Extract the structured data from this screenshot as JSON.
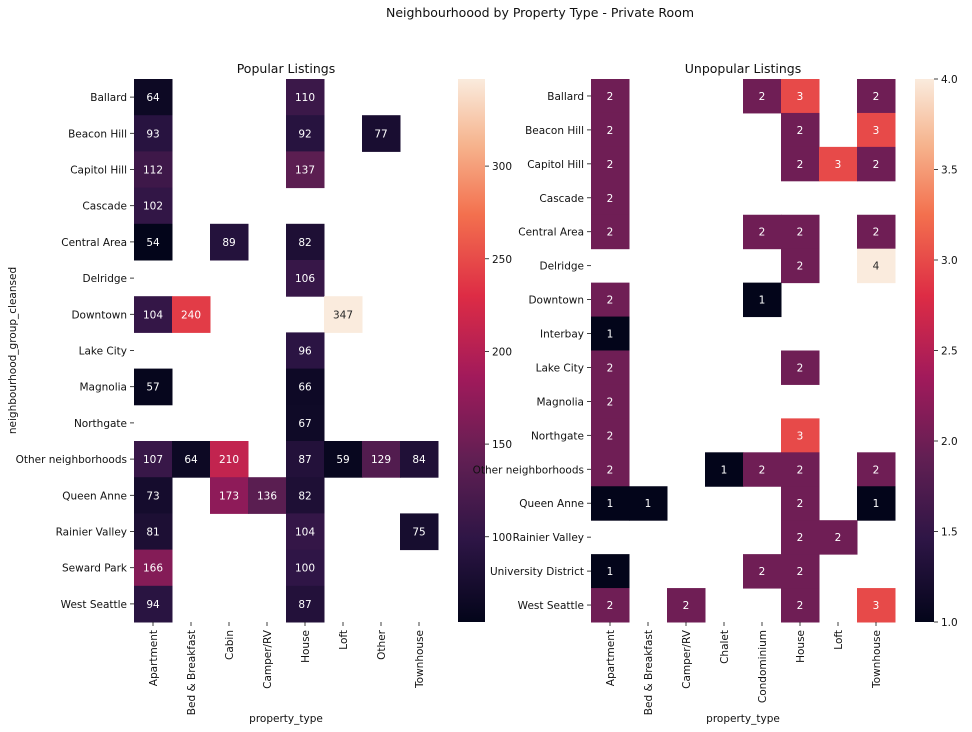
{
  "chart_data": {
    "suptitle": "Neighbourhoood by Property Type - Private Room",
    "panels": [
      {
        "type": "heatmap",
        "title": "Popular Listings",
        "xlabel": "property_type",
        "ylabel": "neighbourhood_group_cleansed",
        "columns": [
          "Apartment",
          "Bed & Breakfast",
          "Cabin",
          "Camper/RV",
          "House",
          "Loft",
          "Other",
          "Townhouse"
        ],
        "rows": [
          "Ballard",
          "Beacon Hill",
          "Capitol Hill",
          "Cascade",
          "Central Area",
          "Delridge",
          "Downtown",
          "Lake City",
          "Magnolia",
          "Northgate",
          "Other neighborhoods",
          "Queen Anne",
          "Rainier Valley",
          "Seward Park",
          "West Seattle"
        ],
        "values": [
          [
            64,
            null,
            null,
            null,
            110,
            null,
            null,
            null
          ],
          [
            93,
            null,
            null,
            null,
            92,
            null,
            77,
            null
          ],
          [
            112,
            null,
            null,
            null,
            137,
            null,
            null,
            null
          ],
          [
            102,
            null,
            null,
            null,
            null,
            null,
            null,
            null
          ],
          [
            54,
            null,
            89,
            null,
            82,
            null,
            null,
            null
          ],
          [
            null,
            null,
            null,
            null,
            106,
            null,
            null,
            null
          ],
          [
            104,
            240,
            null,
            null,
            null,
            347,
            null,
            null
          ],
          [
            null,
            null,
            null,
            null,
            96,
            null,
            null,
            null
          ],
          [
            57,
            null,
            null,
            null,
            66,
            null,
            null,
            null
          ],
          [
            null,
            null,
            null,
            null,
            67,
            null,
            null,
            null
          ],
          [
            107,
            64,
            210,
            null,
            87,
            59,
            129,
            84
          ],
          [
            73,
            null,
            173,
            136,
            82,
            null,
            null,
            null
          ],
          [
            81,
            null,
            null,
            null,
            104,
            null,
            null,
            75
          ],
          [
            166,
            null,
            null,
            null,
            100,
            null,
            null,
            null
          ],
          [
            94,
            null,
            null,
            null,
            87,
            null,
            null,
            null
          ]
        ],
        "vmin": 54,
        "vmax": 347,
        "colorbar_ticks": [
          100,
          150,
          200,
          250,
          300
        ]
      },
      {
        "type": "heatmap",
        "title": "Unpopular Listings",
        "xlabel": "property_type",
        "ylabel": "",
        "columns": [
          "Apartment",
          "Bed & Breakfast",
          "Camper/RV",
          "Chalet",
          "Condominium",
          "House",
          "Loft",
          "Townhouse"
        ],
        "rows": [
          "Ballard",
          "Beacon Hill",
          "Capitol Hill",
          "Cascade",
          "Central Area",
          "Delridge",
          "Downtown",
          "Interbay",
          "Lake City",
          "Magnolia",
          "Northgate",
          "Other neighborhoods",
          "Queen Anne",
          "Rainier Valley",
          "University District",
          "West Seattle"
        ],
        "values": [
          [
            2,
            null,
            null,
            null,
            2,
            3,
            null,
            2
          ],
          [
            2,
            null,
            null,
            null,
            null,
            2,
            null,
            3
          ],
          [
            2,
            null,
            null,
            null,
            null,
            2,
            3,
            2
          ],
          [
            2,
            null,
            null,
            null,
            null,
            null,
            null,
            null
          ],
          [
            2,
            null,
            null,
            null,
            2,
            2,
            null,
            2
          ],
          [
            null,
            null,
            null,
            null,
            null,
            2,
            null,
            4
          ],
          [
            2,
            null,
            null,
            null,
            1,
            null,
            null,
            null
          ],
          [
            1,
            null,
            null,
            null,
            null,
            null,
            null,
            null
          ],
          [
            2,
            null,
            null,
            null,
            null,
            2,
            null,
            null
          ],
          [
            2,
            null,
            null,
            null,
            null,
            null,
            null,
            null
          ],
          [
            2,
            null,
            null,
            null,
            null,
            3,
            null,
            null
          ],
          [
            2,
            null,
            null,
            1,
            2,
            2,
            null,
            2
          ],
          [
            1,
            1,
            null,
            null,
            null,
            2,
            null,
            1
          ],
          [
            null,
            null,
            null,
            null,
            null,
            2,
            2,
            null
          ],
          [
            1,
            null,
            null,
            null,
            2,
            2,
            null,
            null
          ],
          [
            2,
            null,
            2,
            null,
            null,
            2,
            null,
            3
          ]
        ],
        "vmin": 1,
        "vmax": 4,
        "colorbar_ticks": [
          1.0,
          1.5,
          2.0,
          2.5,
          3.0,
          3.5,
          4.0
        ],
        "colorbar_tick_labels": [
          "1.0",
          "1.5",
          "2.0",
          "2.5",
          "3.0",
          "3.5",
          "4.0"
        ]
      }
    ]
  }
}
